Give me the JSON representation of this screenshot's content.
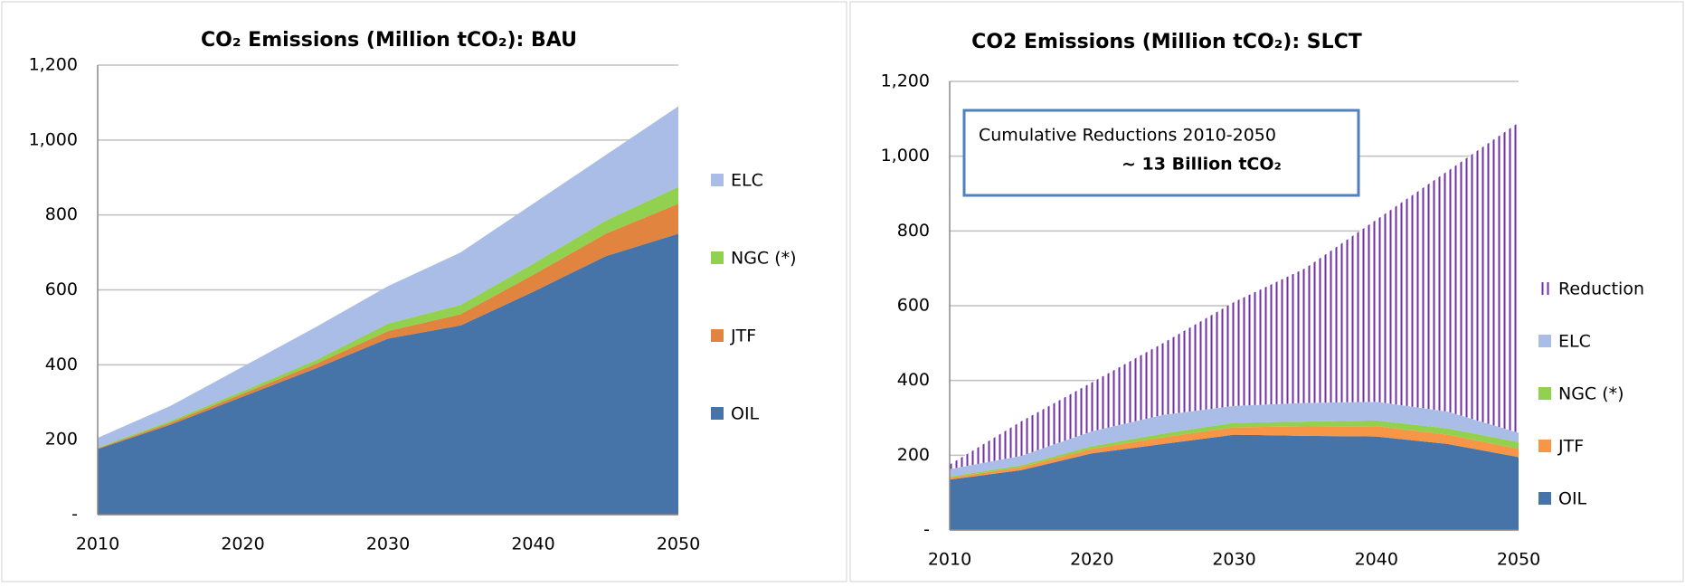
{
  "chart_data": [
    {
      "type": "stacked-area",
      "title": "CO₂ Emissions (Million tCO₂): BAU",
      "x": [
        2010,
        2015,
        2020,
        2025,
        2030,
        2035,
        2040,
        2045,
        2050
      ],
      "series": [
        {
          "name": "OIL",
          "color": "#4673a8",
          "values": [
            175,
            240,
            315,
            390,
            470,
            505,
            595,
            690,
            750
          ]
        },
        {
          "name": "JTF",
          "color": "#e0843f",
          "values": [
            2,
            5,
            8,
            12,
            20,
            30,
            45,
            60,
            80
          ]
        },
        {
          "name": "NGC (*)",
          "color": "#92d050",
          "values": [
            2,
            5,
            7,
            10,
            20,
            25,
            30,
            35,
            45
          ]
        },
        {
          "name": "ELC",
          "color": "#a9bde6",
          "values": [
            26,
            40,
            65,
            88,
            100,
            140,
            160,
            175,
            215
          ]
        }
      ],
      "xlim": [
        2010,
        2050
      ],
      "xticks": [
        2010,
        2020,
        2030,
        2040,
        2050
      ],
      "ylim": [
        0,
        1200
      ],
      "yticks": [
        {
          "value": 0,
          "label": "-"
        },
        200,
        400,
        600,
        800,
        {
          "value": 1000,
          "label": "1,000"
        },
        {
          "value": 1200,
          "label": "1,200"
        }
      ],
      "grid": true
    },
    {
      "type": "stacked-area",
      "title": "CO2 Emissions (Million tCO₂): SLCT",
      "x": [
        2010,
        2015,
        2020,
        2025,
        2030,
        2035,
        2040,
        2045,
        2050
      ],
      "series": [
        {
          "name": "OIL",
          "color": "#4673a8",
          "values": [
            135,
            160,
            205,
            230,
            255,
            252,
            250,
            230,
            195
          ]
        },
        {
          "name": "JTF",
          "color": "#f79646",
          "values": [
            5,
            8,
            12,
            18,
            20,
            25,
            28,
            25,
            22
          ]
        },
        {
          "name": "NGC (*)",
          "color": "#92d050",
          "values": [
            3,
            5,
            7,
            10,
            12,
            13,
            15,
            17,
            18
          ]
        },
        {
          "name": "ELC",
          "color": "#a9bde6",
          "values": [
            20,
            25,
            40,
            50,
            45,
            50,
            50,
            45,
            25
          ]
        },
        {
          "name": "Reduction",
          "color": "#7030a0",
          "pattern": "vertical-lines",
          "values": [
            12,
            92,
            131,
            192,
            278,
            360,
            487,
            643,
            830
          ]
        }
      ],
      "xlim": [
        2010,
        2050
      ],
      "xticks": [
        2010,
        2020,
        2030,
        2040,
        2050
      ],
      "ylim": [
        0,
        1200
      ],
      "yticks": [
        {
          "value": 0,
          "label": "-"
        },
        200,
        400,
        600,
        800,
        {
          "value": 1000,
          "label": "1,000"
        },
        {
          "value": 1200,
          "label": "1,200"
        }
      ],
      "grid": true,
      "annotations": [
        "Cumulative Reductions 2010-2050",
        "~ 13 Billion tCO₂"
      ]
    }
  ]
}
